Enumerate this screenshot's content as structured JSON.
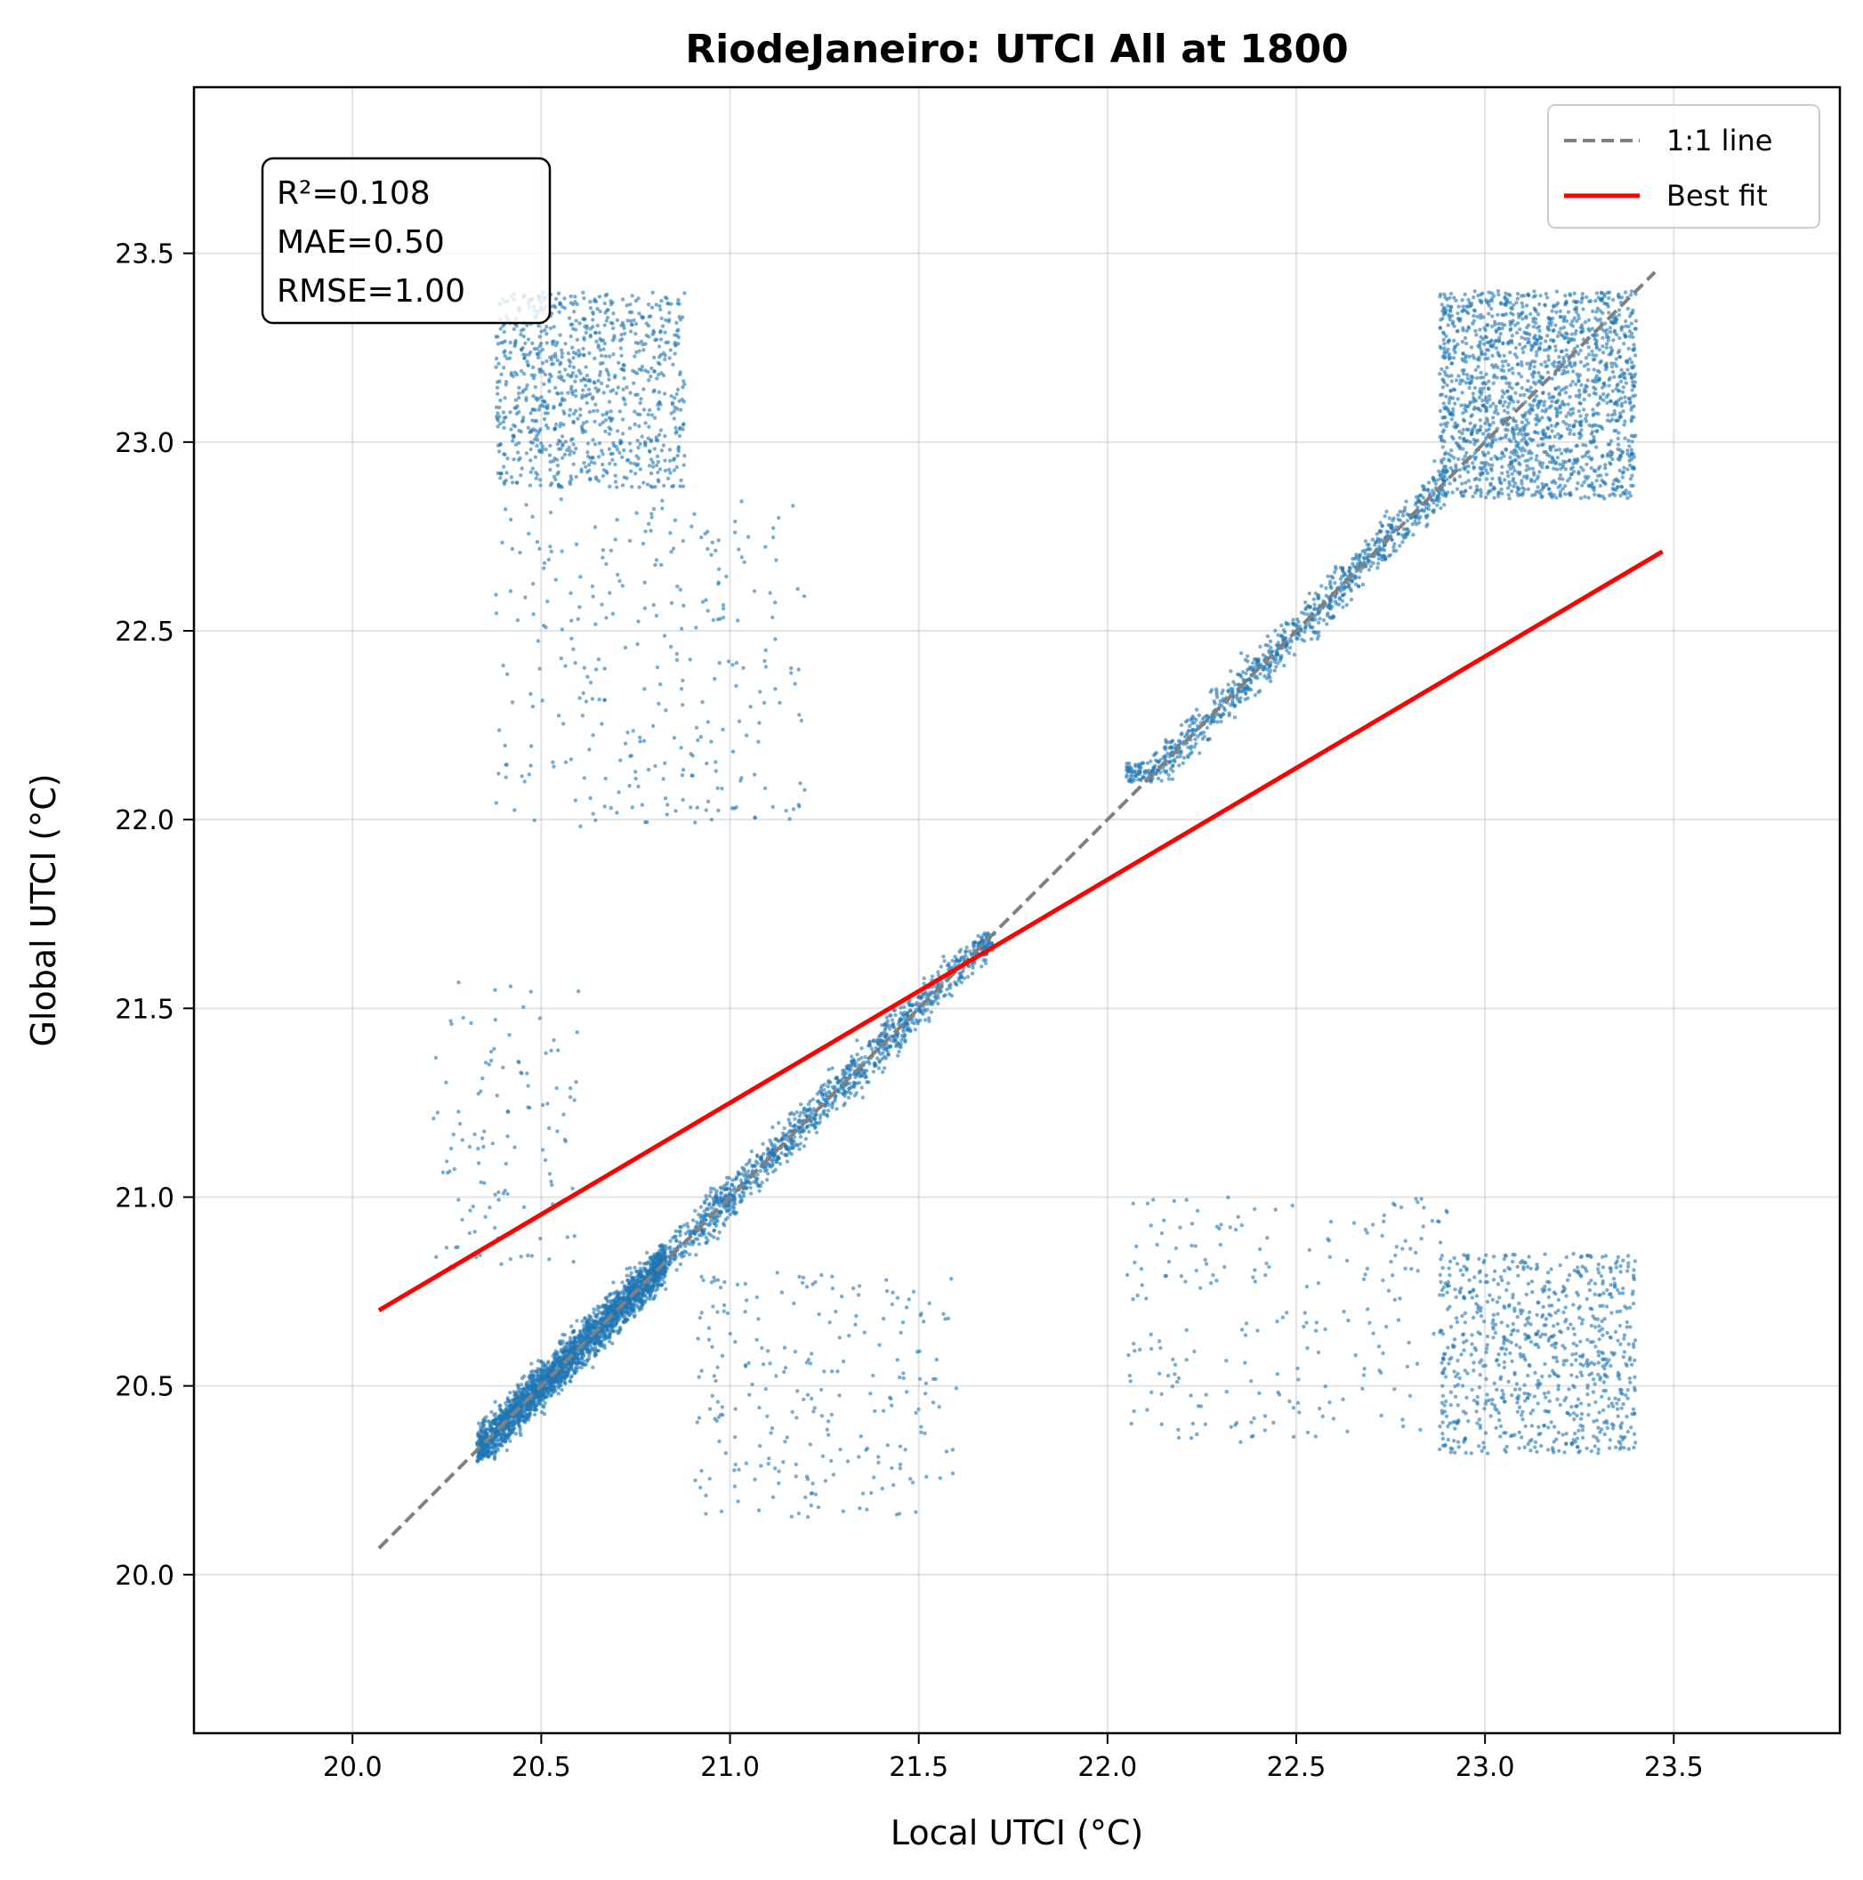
{
  "chart_data": {
    "type": "scatter",
    "title": "RiodeJaneiro: UTCI All at 1800",
    "xlabel": "Local UTCI (°C)",
    "ylabel": "Global UTCI (°C)",
    "xlim": [
      19.58,
      23.94
    ],
    "ylim": [
      19.58,
      23.94
    ],
    "xticks": [
      "20.0",
      "20.5",
      "21.0",
      "21.5",
      "22.0",
      "22.5",
      "23.0",
      "23.5"
    ],
    "yticks": [
      "20.0",
      "20.5",
      "21.0",
      "21.5",
      "22.0",
      "22.5",
      "23.0",
      "23.5"
    ],
    "grid": true,
    "legend_position": "top-right",
    "legend": [
      {
        "label": "1:1 line",
        "color": "#808080",
        "style": "dashed"
      },
      {
        "label": "Best fit",
        "color": "#ff0000",
        "style": "solid"
      }
    ],
    "stats": {
      "r2_label": "R²=0.108",
      "mae_label": "MAE=0.50",
      "rmse_label": "RMSE=1.00"
    },
    "series": [
      {
        "name": "1:1 line",
        "kind": "line",
        "color": "#808080",
        "x": [
          20.07,
          23.45
        ],
        "y": [
          20.07,
          23.45
        ]
      },
      {
        "name": "Best fit",
        "kind": "line",
        "color": "#ff0000",
        "x": [
          20.07,
          23.47
        ],
        "y": [
          20.7,
          22.71
        ]
      }
    ],
    "point_color": "#1f77b4",
    "point_clusters": [
      {
        "x": [
          20.33,
          20.83
        ],
        "y": [
          20.3,
          21.02
        ],
        "along_diagonal": true,
        "count": 2600
      },
      {
        "x": [
          20.8,
          21.7
        ],
        "y": [
          20.8,
          21.7
        ],
        "along_diagonal": true,
        "count": 1200
      },
      {
        "x": [
          22.05,
          22.9
        ],
        "y": [
          22.1,
          22.95
        ],
        "along_diagonal": true,
        "count": 900
      },
      {
        "x": [
          22.88,
          23.4
        ],
        "y": [
          22.85,
          23.4
        ],
        "along_diagonal": false,
        "count": 1700
      },
      {
        "x": [
          20.38,
          20.88
        ],
        "y": [
          22.88,
          23.4
        ],
        "along_diagonal": false,
        "count": 900
      },
      {
        "x": [
          20.38,
          21.2
        ],
        "y": [
          21.98,
          22.85
        ],
        "along_diagonal": false,
        "count": 300
      },
      {
        "x": [
          22.88,
          23.4
        ],
        "y": [
          20.32,
          20.85
        ],
        "along_diagonal": false,
        "count": 800
      },
      {
        "x": [
          22.05,
          22.9
        ],
        "y": [
          20.35,
          21.0
        ],
        "along_diagonal": false,
        "count": 220
      },
      {
        "x": [
          20.9,
          21.6
        ],
        "y": [
          20.15,
          20.8
        ],
        "along_diagonal": false,
        "count": 240
      },
      {
        "x": [
          20.2,
          20.6
        ],
        "y": [
          20.8,
          21.6
        ],
        "along_diagonal": false,
        "count": 120
      }
    ]
  }
}
